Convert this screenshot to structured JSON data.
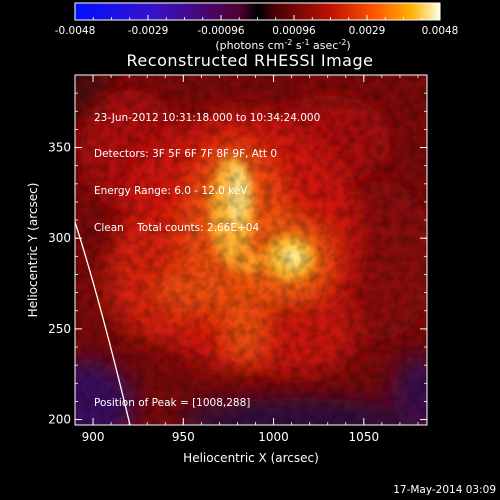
{
  "colorbar": {
    "ticks": [
      "-0.0048",
      "-0.0029",
      "-0.00096",
      "0.00096",
      "0.0029",
      "0.0048"
    ],
    "units_main": "(photons cm",
    "units_exp1": "-2",
    "units_s": " s",
    "units_exp2": "-1",
    "units_asec": " asec",
    "units_exp3": "-2",
    "units_close": ")"
  },
  "title": "Reconstructed RHESSI Image",
  "info": {
    "line1": "23-Jun-2012 10:31:18.000 to 10:34:24.000",
    "line2": "Detectors: 3F 5F 6F 7F 8F 9F, Att 0",
    "line3": "Energy Range: 6.0 - 12.0 keV",
    "line4": "Clean    Total counts: 2.66E+04"
  },
  "peak_text": "Position of Peak = [1008,288]",
  "axes": {
    "xlabel": "Heliocentric X (arcsec)",
    "ylabel": "Heliocentric Y (arcsec)",
    "xticks": [
      "900",
      "950",
      "1000",
      "1050"
    ],
    "yticks": [
      "200",
      "250",
      "300",
      "350"
    ]
  },
  "footer_date": "17-May-2014 03:09",
  "colors": {
    "background": "#000000",
    "text": "#ffffff"
  }
}
